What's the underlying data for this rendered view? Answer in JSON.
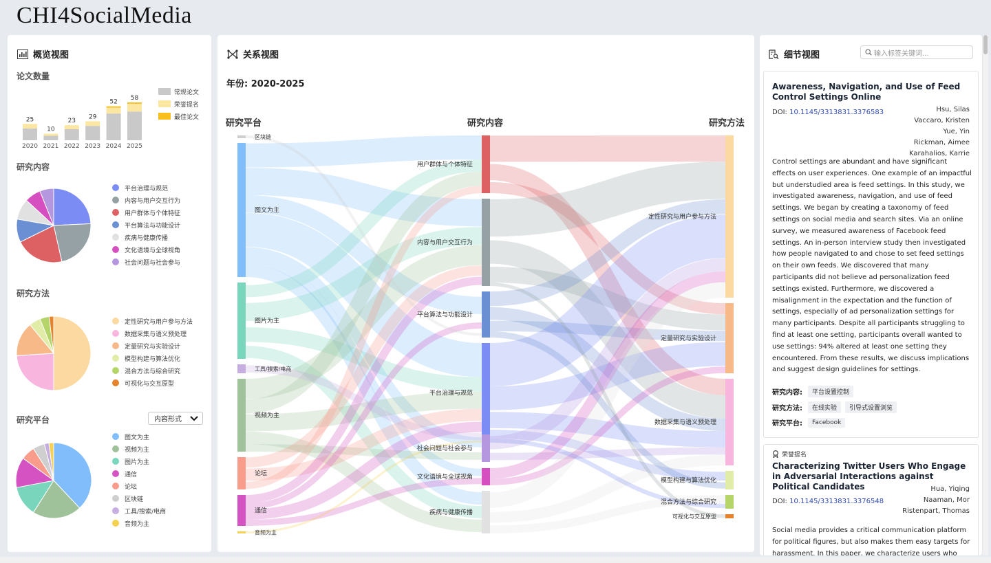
{
  "app_title": "CHI4SocialMedia",
  "overview": {
    "title": "概览视图",
    "paper_count": {
      "title": "论文数量",
      "years": [
        "2020",
        "2021",
        "2022",
        "2023",
        "2024",
        "2025"
      ],
      "totals": [
        25,
        10,
        23,
        29,
        52,
        58
      ],
      "regular": [
        18,
        7,
        17,
        22,
        41,
        44
      ],
      "honorable": [
        7,
        3,
        6,
        7,
        9,
        12
      ],
      "best": [
        0,
        0,
        0,
        0,
        2,
        2
      ],
      "legend": [
        "常规论文",
        "荣誉提名",
        "最佳论文"
      ],
      "colors": [
        "#c9c9c9",
        "#fbe7a2",
        "#f6bf1d"
      ]
    },
    "content": {
      "title": "研究内容",
      "items": [
        {
          "label": "平台治理与规范",
          "value": 24,
          "color": "#7b8cf5"
        },
        {
          "label": "内容与用户交互行为",
          "value": 22,
          "color": "#95a1a4"
        },
        {
          "label": "用户群体与个体特征",
          "value": 21,
          "color": "#dd6163"
        },
        {
          "label": "平台算法与功能设计",
          "value": 10,
          "color": "#6a8fd2"
        },
        {
          "label": "疾病与健康传播",
          "value": 9,
          "color": "#e1e1e1"
        },
        {
          "label": "文化语境与全球视角",
          "value": 7,
          "color": "#d54fc0"
        },
        {
          "label": "社会问题与社会参与",
          "value": 6,
          "color": "#b497de"
        }
      ]
    },
    "method": {
      "title": "研究方法",
      "items": [
        {
          "label": "定性研究与用户参与方法",
          "value": 50,
          "color": "#fbd9a0"
        },
        {
          "label": "数据采集与语义预处理",
          "value": 24,
          "color": "#f8b5de"
        },
        {
          "label": "定量研究与实验设计",
          "value": 15,
          "color": "#f8b989"
        },
        {
          "label": "模型构建与算法优化",
          "value": 5,
          "color": "#e0eca7"
        },
        {
          "label": "混合方法与综合研究",
          "value": 4,
          "color": "#b5d56a"
        },
        {
          "label": "可视化与交互原型",
          "value": 2,
          "color": "#e5832c"
        }
      ]
    },
    "platform": {
      "title": "研究平台",
      "select_value": "内容形式",
      "items": [
        {
          "label": "图文为主",
          "value": 38,
          "color": "#81bdfa"
        },
        {
          "label": "视频为主",
          "value": 21,
          "color": "#9fc29a"
        },
        {
          "label": "图片为主",
          "value": 13,
          "color": "#79d6bd"
        },
        {
          "label": "通信",
          "value": 13,
          "color": "#d452c2"
        },
        {
          "label": "论坛",
          "value": 6,
          "color": "#f99c8b"
        },
        {
          "label": "区块链",
          "value": 5,
          "color": "#cfcfcf"
        },
        {
          "label": "工具/搜索/电商",
          "value": 2,
          "color": "#c6aee0"
        },
        {
          "label": "音频为主",
          "value": 2,
          "color": "#f5d150"
        }
      ]
    }
  },
  "relation": {
    "title": "关系视图",
    "year_label": "年份: 2020-2025",
    "col_titles": [
      "研究平台",
      "研究内容",
      "研究方法"
    ],
    "platforms": [
      "区块链",
      "图文为主",
      "图片为主",
      "工具/搜索/电商",
      "视频为主",
      "论坛",
      "通信",
      "音频为主"
    ],
    "contents": [
      "用户群体与个体特征",
      "内容与用户交互行为",
      "平台算法与功能设计",
      "平台治理与规范",
      "社会问题与社会参与",
      "文化语境与全球视角",
      "疾病与健康传播"
    ],
    "methods": [
      "定性研究与用户参与方法",
      "定量研究与实验设计",
      "数据采集与语义预处理",
      "模型构建与算法优化",
      "混合方法与综合研究",
      "可视化与交互原型"
    ]
  },
  "detail": {
    "title": "细节视图",
    "search_placeholder": "输入标签关键词...",
    "cards": [
      {
        "badge": "",
        "title": "Awareness, Navigation, and Use of Feed Control Settings Online",
        "doi_label": "DOI:",
        "doi": "10.1145/3313831.3376583",
        "authors": [
          "Hsu, Silas",
          "Vaccaro, Kristen",
          "Yue, Yin",
          "Rickman, Aimee",
          "Karahalios, Karrie"
        ],
        "abstract": "Control settings are abundant and have significant effects on user experiences. One example of an impactful but understudied area is feed settings. In this study, we investigated awareness, navigation, and use of feed settings. We began by creating a taxonomy of feed settings on social media and search sites. Via an online survey, we measured awareness of Facebook feed settings. An in-person interview study then investigated how people navigated to and chose to set feed settings on their own feeds. We discovered that many participants did not believe ad personalization feed settings existed. Furthermore, we discovered a misalignment in the expectation and the function of settings, especially of ad personalization settings for many participants. Despite all participants struggling to find at least one setting, participants overall wanted to use settings: 94% altered at least one setting they encountered. From these results, we discuss implications and suggest design guidelines for settings.",
        "content_label": "研究内容:",
        "content_tags": [
          "平台设置控制"
        ],
        "method_label": "研究方法:",
        "method_tags": [
          "在线实验",
          "引导式设置浏览"
        ],
        "platform_label": "研究平台:",
        "platform_tags": [
          "Facebook"
        ]
      },
      {
        "badge": "荣誉提名",
        "title": "Characterizing Twitter Users Who Engage in Adversarial Interactions against Political Candidates",
        "doi_label": "DOI:",
        "doi": "10.1145/3313831.3376548",
        "authors": [
          "Hua, Yiqing",
          "Naaman, Mor",
          "Ristenpart, Thomas"
        ],
        "abstract": "Social media provides a critical communication platform for political figures, but also makes them easy targets for harassment. In this paper, we characterize users who"
      }
    ]
  }
}
